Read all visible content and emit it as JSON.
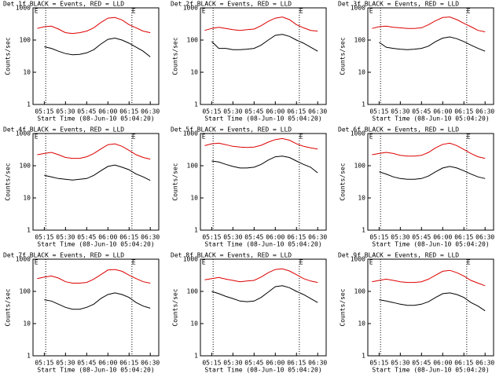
{
  "chart_data": [
    {
      "type": "line",
      "title": "Det 1f BLACK = Events, RED = LLD",
      "xlabel": "Start Time (08-Jun-10 05:04:20)",
      "ylabel": "Counts/sec",
      "log_y": true,
      "x": [
        "05:10",
        "05:15",
        "05:20",
        "05:25",
        "05:30",
        "05:35",
        "05:40",
        "05:45",
        "05:50",
        "05:55",
        "06:00",
        "06:05",
        "06:10",
        "06:15",
        "06:20",
        "06:25",
        "06:30"
      ],
      "xlim": [
        "05:07",
        "06:36"
      ],
      "xticks": [
        "05:15",
        "05:30",
        "05:45",
        "06:00",
        "06:15",
        "06:30"
      ],
      "ylim": [
        1,
        1000
      ],
      "yticks": [
        1,
        10,
        100,
        1000
      ],
      "vlines": [
        "05:16",
        "06:17"
      ],
      "annotations": [
        {
          "x": "05:08",
          "text": "E"
        },
        {
          "x": "06:17",
          "text": "E"
        }
      ],
      "series": [
        {
          "name": "RED = LLD",
          "color": "#dd0000",
          "values": [
            230,
            260,
            270,
            220,
            170,
            160,
            170,
            190,
            240,
            350,
            480,
            500,
            420,
            300,
            240,
            190,
            170
          ]
        },
        {
          "name": "BLACK = Events",
          "color": "#000000",
          "values": [
            null,
            62,
            55,
            45,
            38,
            35,
            36,
            40,
            50,
            75,
            105,
            115,
            100,
            80,
            60,
            45,
            30
          ]
        }
      ]
    },
    {
      "type": "line",
      "title": "Det 2f BLACK = Events, RED = LLD",
      "xlabel": "Start Time (08-Jun-10 05:04:20)",
      "ylabel": "Counts/sec",
      "log_y": true,
      "x": [
        "05:10",
        "05:15",
        "05:20",
        "05:25",
        "05:30",
        "05:35",
        "05:40",
        "05:45",
        "05:50",
        "05:55",
        "06:00",
        "06:05",
        "06:10",
        "06:15",
        "06:20",
        "06:25",
        "06:30"
      ],
      "xlim": [
        "05:07",
        "06:36"
      ],
      "xticks": [
        "05:15",
        "05:30",
        "05:45",
        "06:00",
        "06:15",
        "06:30"
      ],
      "ylim": [
        1,
        1000
      ],
      "yticks": [
        1,
        10,
        100,
        1000
      ],
      "vlines": [
        "05:16",
        "06:17"
      ],
      "annotations": [
        {
          "x": "05:08",
          "text": "E"
        },
        {
          "x": "06:17",
          "text": "E"
        }
      ],
      "series": [
        {
          "name": "RED = LLD",
          "color": "#dd0000",
          "values": [
            200,
            230,
            250,
            230,
            210,
            200,
            210,
            220,
            280,
            380,
            480,
            520,
            430,
            300,
            240,
            200,
            190
          ]
        },
        {
          "name": "BLACK = Events",
          "color": "#000000",
          "values": [
            null,
            90,
            55,
            55,
            50,
            50,
            52,
            55,
            70,
            100,
            140,
            150,
            130,
            100,
            80,
            60,
            45
          ]
        }
      ]
    },
    {
      "type": "line",
      "title": "Det 3f BLACK = Events, RED = LLD",
      "xlabel": "Start Time (08-Jun-10 05:04:20)",
      "ylabel": "Counts/sec",
      "log_y": true,
      "x": [
        "05:10",
        "05:15",
        "05:20",
        "05:25",
        "05:30",
        "05:35",
        "05:40",
        "05:45",
        "05:50",
        "05:55",
        "06:00",
        "06:05",
        "06:10",
        "06:15",
        "06:20",
        "06:25",
        "06:30"
      ],
      "xlim": [
        "05:07",
        "06:36"
      ],
      "xticks": [
        "05:15",
        "05:30",
        "05:45",
        "06:00",
        "06:15",
        "06:30"
      ],
      "ylim": [
        1,
        1000
      ],
      "yticks": [
        1,
        10,
        100,
        1000
      ],
      "vlines": [
        "05:16",
        "06:17"
      ],
      "annotations": [
        {
          "x": "05:08",
          "text": "E"
        },
        {
          "x": "06:17",
          "text": "E"
        }
      ],
      "series": [
        {
          "name": "RED = LLD",
          "color": "#dd0000",
          "values": [
            230,
            260,
            270,
            250,
            240,
            230,
            230,
            240,
            300,
            400,
            500,
            520,
            430,
            330,
            260,
            200,
            180
          ]
        },
        {
          "name": "BLACK = Events",
          "color": "#000000",
          "values": [
            null,
            85,
            60,
            55,
            52,
            50,
            52,
            55,
            65,
            90,
            115,
            125,
            110,
            90,
            70,
            55,
            45
          ]
        }
      ]
    },
    {
      "type": "line",
      "title": "Det 4f BLACK = Events, RED = LLD",
      "xlabel": "Start Time (08-Jun-10 05:04:20)",
      "ylabel": "Counts/sec",
      "log_y": true,
      "x": [
        "05:10",
        "05:15",
        "05:20",
        "05:25",
        "05:30",
        "05:35",
        "05:40",
        "05:45",
        "05:50",
        "05:55",
        "06:00",
        "06:05",
        "06:10",
        "06:15",
        "06:20",
        "06:25",
        "06:30"
      ],
      "xlim": [
        "05:07",
        "06:36"
      ],
      "xticks": [
        "05:15",
        "05:30",
        "05:45",
        "06:00",
        "06:15",
        "06:30"
      ],
      "ylim": [
        1,
        1000
      ],
      "yticks": [
        1,
        10,
        100,
        1000
      ],
      "vlines": [
        "05:16",
        "06:17"
      ],
      "annotations": [
        {
          "x": "05:08",
          "text": "E"
        },
        {
          "x": "06:17",
          "text": "E"
        }
      ],
      "series": [
        {
          "name": "RED = LLD",
          "color": "#dd0000",
          "values": [
            220,
            240,
            260,
            220,
            180,
            170,
            170,
            190,
            240,
            330,
            450,
            480,
            400,
            300,
            220,
            180,
            160
          ]
        },
        {
          "name": "BLACK = Events",
          "color": "#000000",
          "values": [
            null,
            50,
            45,
            40,
            38,
            36,
            38,
            40,
            50,
            70,
            95,
            105,
            90,
            75,
            55,
            45,
            35
          ]
        }
      ]
    },
    {
      "type": "line",
      "title": "Det 5f BLACK = Events, RED = LLD",
      "xlabel": "Start Time (08-Jun-10 05:04:20)",
      "ylabel": "Counts/sec",
      "log_y": true,
      "x": [
        "05:10",
        "05:15",
        "05:20",
        "05:25",
        "05:30",
        "05:35",
        "05:40",
        "05:45",
        "05:50",
        "05:55",
        "06:00",
        "06:05",
        "06:10",
        "06:15",
        "06:20",
        "06:25",
        "06:30"
      ],
      "xlim": [
        "05:07",
        "06:36"
      ],
      "xticks": [
        "05:15",
        "05:30",
        "05:45",
        "06:00",
        "06:15",
        "06:30"
      ],
      "ylim": [
        1,
        1000
      ],
      "yticks": [
        1,
        10,
        100,
        1000
      ],
      "vlines": [
        "05:16",
        "06:17"
      ],
      "annotations": [
        {
          "x": "05:08",
          "text": "E"
        },
        {
          "x": "06:17",
          "text": "E"
        }
      ],
      "series": [
        {
          "name": "RED = LLD",
          "color": "#dd0000",
          "values": [
            420,
            480,
            500,
            450,
            400,
            380,
            370,
            380,
            430,
            540,
            650,
            700,
            620,
            480,
            400,
            360,
            330
          ]
        },
        {
          "name": "BLACK = Events",
          "color": "#000000",
          "values": [
            null,
            140,
            130,
            110,
            95,
            85,
            85,
            90,
            110,
            150,
            190,
            200,
            180,
            140,
            110,
            90,
            60
          ]
        }
      ]
    },
    {
      "type": "line",
      "title": "Det 6f BLACK = Events, RED = LLD",
      "xlabel": "Start Time (08-Jun-10 05:04:20)",
      "ylabel": "Counts/sec",
      "log_y": true,
      "x": [
        "05:10",
        "05:15",
        "05:20",
        "05:25",
        "05:30",
        "05:35",
        "05:40",
        "05:45",
        "05:50",
        "05:55",
        "06:00",
        "06:05",
        "06:10",
        "06:15",
        "06:20",
        "06:25",
        "06:30"
      ],
      "xlim": [
        "05:07",
        "06:36"
      ],
      "xticks": [
        "05:15",
        "05:30",
        "05:45",
        "06:00",
        "06:15",
        "06:30"
      ],
      "ylim": [
        1,
        1000
      ],
      "yticks": [
        1,
        10,
        100,
        1000
      ],
      "vlines": [
        "05:16",
        "06:17"
      ],
      "annotations": [
        {
          "x": "05:08",
          "text": "E"
        },
        {
          "x": "06:17",
          "text": "E"
        }
      ],
      "series": [
        {
          "name": "RED = LLD",
          "color": "#dd0000",
          "values": [
            220,
            240,
            260,
            240,
            210,
            200,
            200,
            210,
            260,
            360,
            460,
            500,
            420,
            320,
            240,
            190,
            170
          ]
        },
        {
          "name": "BLACK = Events",
          "color": "#000000",
          "values": [
            null,
            65,
            55,
            45,
            40,
            38,
            38,
            40,
            48,
            65,
            85,
            95,
            85,
            70,
            55,
            45,
            40
          ]
        }
      ]
    },
    {
      "type": "line",
      "title": "Det 7f BLACK = Events, RED = LLD",
      "xlabel": "Start Time (08-Jun-10 05:04:20)",
      "ylabel": "Counts/sec",
      "log_y": true,
      "x": [
        "05:10",
        "05:15",
        "05:20",
        "05:25",
        "05:30",
        "05:35",
        "05:40",
        "05:45",
        "05:50",
        "05:55",
        "06:00",
        "06:05",
        "06:10",
        "06:15",
        "06:20",
        "06:25",
        "06:30"
      ],
      "xlim": [
        "05:07",
        "06:36"
      ],
      "xticks": [
        "05:15",
        "05:30",
        "05:45",
        "06:00",
        "06:15",
        "06:30"
      ],
      "ylim": [
        1,
        1000
      ],
      "yticks": [
        1,
        10,
        100,
        1000
      ],
      "vlines": [
        "05:16",
        "06:17"
      ],
      "annotations": [
        {
          "x": "05:08",
          "text": "E"
        },
        {
          "x": "06:17",
          "text": "E"
        }
      ],
      "series": [
        {
          "name": "RED = LLD",
          "color": "#dd0000",
          "values": [
            250,
            280,
            300,
            260,
            200,
            180,
            180,
            190,
            240,
            330,
            460,
            480,
            420,
            320,
            250,
            200,
            180
          ]
        },
        {
          "name": "BLACK = Events",
          "color": "#000000",
          "values": [
            null,
            55,
            50,
            40,
            32,
            28,
            28,
            32,
            40,
            60,
            80,
            90,
            80,
            65,
            45,
            35,
            30
          ]
        }
      ]
    },
    {
      "type": "line",
      "title": "Det 8f BLACK = Events, RED = LLD",
      "xlabel": "Start Time (08-Jun-10 05:04:20)",
      "ylabel": "Counts/sec",
      "log_y": true,
      "x": [
        "05:10",
        "05:15",
        "05:20",
        "05:25",
        "05:30",
        "05:35",
        "05:40",
        "05:45",
        "05:50",
        "05:55",
        "06:00",
        "06:05",
        "06:10",
        "06:15",
        "06:20",
        "06:25",
        "06:30"
      ],
      "xlim": [
        "05:07",
        "06:36"
      ],
      "xticks": [
        "05:15",
        "05:30",
        "05:45",
        "06:00",
        "06:15",
        "06:30"
      ],
      "ylim": [
        1,
        1000
      ],
      "yticks": [
        1,
        10,
        100,
        1000
      ],
      "vlines": [
        "05:16",
        "06:17"
      ],
      "annotations": [
        {
          "x": "05:08",
          "text": "E"
        },
        {
          "x": "06:17",
          "text": "E"
        }
      ],
      "series": [
        {
          "name": "RED = LLD",
          "color": "#dd0000",
          "values": [
            230,
            250,
            270,
            240,
            220,
            200,
            210,
            220,
            280,
            380,
            480,
            500,
            430,
            330,
            250,
            210,
            190
          ]
        },
        {
          "name": "BLACK = Events",
          "color": "#000000",
          "values": [
            null,
            100,
            85,
            70,
            60,
            50,
            48,
            50,
            65,
            95,
            140,
            150,
            130,
            100,
            80,
            60,
            45
          ]
        }
      ]
    },
    {
      "type": "line",
      "title": "Det 9f BLACK = Events, RED = LLD",
      "xlabel": "Start Time (08-Jun-10 05:04:20)",
      "ylabel": "Counts/sec",
      "log_y": true,
      "x": [
        "05:10",
        "05:15",
        "05:20",
        "05:25",
        "05:30",
        "05:35",
        "05:40",
        "05:45",
        "05:50",
        "05:55",
        "06:00",
        "06:05",
        "06:10",
        "06:15",
        "06:20",
        "06:25",
        "06:30"
      ],
      "xlim": [
        "05:07",
        "06:36"
      ],
      "xticks": [
        "05:15",
        "05:30",
        "05:45",
        "06:00",
        "06:15",
        "06:30"
      ],
      "ylim": [
        1,
        1000
      ],
      "yticks": [
        1,
        10,
        100,
        1000
      ],
      "vlines": [
        "05:16",
        "06:17"
      ],
      "annotations": [
        {
          "x": "05:08",
          "text": "E"
        },
        {
          "x": "06:17",
          "text": "E"
        }
      ],
      "series": [
        {
          "name": "RED = LLD",
          "color": "#dd0000",
          "values": [
            200,
            220,
            240,
            220,
            200,
            190,
            190,
            200,
            240,
            320,
            420,
            450,
            380,
            300,
            220,
            180,
            150
          ]
        },
        {
          "name": "BLACK = Events",
          "color": "#000000",
          "values": [
            null,
            55,
            50,
            45,
            40,
            37,
            37,
            40,
            48,
            65,
            85,
            90,
            80,
            65,
            45,
            35,
            25
          ]
        }
      ]
    }
  ]
}
